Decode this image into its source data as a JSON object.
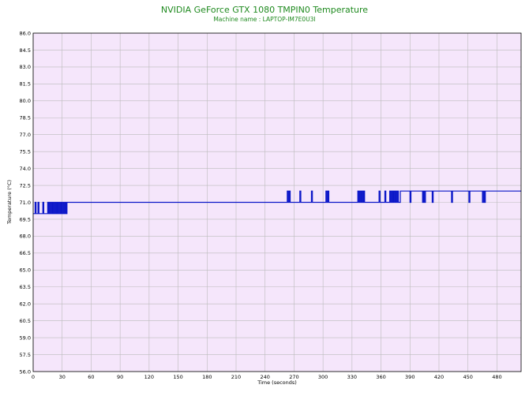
{
  "chart_data": {
    "type": "line",
    "title": "NVIDIA GeForce GTX 1080 TMPIN0 Temperature",
    "subtitle": "Machine name : LAPTOP-IM7E0U3I",
    "xlabel": "Time (seconds)",
    "ylabel": "Temperature (°C)",
    "xlim": [
      0,
      505
    ],
    "ylim": [
      56.0,
      86.0
    ],
    "x_ticks": [
      0,
      30,
      60,
      90,
      120,
      150,
      180,
      210,
      240,
      270,
      300,
      330,
      360,
      390,
      420,
      450,
      480
    ],
    "y_ticks": [
      56.0,
      57.5,
      59.0,
      60.5,
      62.0,
      63.5,
      65.0,
      66.5,
      68.0,
      69.5,
      71.0,
      72.5,
      74.0,
      75.5,
      77.0,
      78.5,
      80.0,
      81.5,
      83.0,
      84.5,
      86.0
    ],
    "grid": true,
    "series": [
      {
        "points": [
          [
            0,
            70.0
          ],
          [
            2,
            71.0
          ],
          [
            3,
            70.0
          ],
          [
            5,
            71.0
          ],
          [
            6,
            70.0
          ],
          [
            9,
            70.0
          ],
          [
            10,
            71.0
          ],
          [
            11,
            70.0
          ],
          [
            14,
            70.0
          ],
          [
            15,
            71.0
          ],
          [
            16,
            70.0
          ],
          [
            17,
            71.0
          ],
          [
            18,
            70.0
          ],
          [
            19,
            71.0
          ],
          [
            20,
            70.0
          ],
          [
            21,
            71.0
          ],
          [
            22,
            70.0
          ],
          [
            23,
            71.0
          ],
          [
            24,
            70.0
          ],
          [
            25,
            71.0
          ],
          [
            26,
            70.0
          ],
          [
            27,
            71.0
          ],
          [
            28,
            70.0
          ],
          [
            29,
            71.0
          ],
          [
            30,
            70.0
          ],
          [
            31,
            71.0
          ],
          [
            32,
            70.0
          ],
          [
            33,
            71.0
          ],
          [
            34,
            70.0
          ],
          [
            35,
            71.0
          ],
          [
            262,
            71.0
          ],
          [
            263,
            72.0
          ],
          [
            264,
            71.0
          ],
          [
            265,
            72.0
          ],
          [
            266,
            71.0
          ],
          [
            275,
            71.0
          ],
          [
            276,
            72.0
          ],
          [
            277,
            71.0
          ],
          [
            287,
            71.0
          ],
          [
            288,
            72.0
          ],
          [
            289,
            71.0
          ],
          [
            302,
            71.0
          ],
          [
            303,
            72.0
          ],
          [
            304,
            71.0
          ],
          [
            305,
            72.0
          ],
          [
            306,
            71.0
          ],
          [
            335,
            71.0
          ],
          [
            336,
            72.0
          ],
          [
            337,
            71.0
          ],
          [
            338,
            72.0
          ],
          [
            339,
            71.0
          ],
          [
            340,
            72.0
          ],
          [
            341,
            71.0
          ],
          [
            342,
            72.0
          ],
          [
            343,
            71.0
          ],
          [
            357,
            71.0
          ],
          [
            358,
            72.0
          ],
          [
            359,
            71.0
          ],
          [
            363,
            71.0
          ],
          [
            364,
            72.0
          ],
          [
            365,
            71.0
          ],
          [
            368,
            71.0
          ],
          [
            369,
            72.0
          ],
          [
            370,
            71.0
          ],
          [
            371,
            72.0
          ],
          [
            372,
            71.0
          ],
          [
            373,
            72.0
          ],
          [
            374,
            71.0
          ],
          [
            375,
            72.0
          ],
          [
            376,
            71.0
          ],
          [
            377,
            72.0
          ],
          [
            378,
            71.0
          ],
          [
            380,
            72.0
          ],
          [
            389,
            72.0
          ],
          [
            390,
            71.0
          ],
          [
            391,
            72.0
          ],
          [
            402,
            72.0
          ],
          [
            403,
            71.0
          ],
          [
            404,
            72.0
          ],
          [
            405,
            71.0
          ],
          [
            406,
            72.0
          ],
          [
            412,
            72.0
          ],
          [
            413,
            71.0
          ],
          [
            414,
            72.0
          ],
          [
            432,
            72.0
          ],
          [
            433,
            71.0
          ],
          [
            434,
            72.0
          ],
          [
            450,
            72.0
          ],
          [
            451,
            71.0
          ],
          [
            452,
            72.0
          ],
          [
            464,
            72.0
          ],
          [
            465,
            71.0
          ],
          [
            466,
            72.0
          ],
          [
            467,
            71.0
          ],
          [
            468,
            72.0
          ],
          [
            505,
            72.0
          ]
        ]
      }
    ]
  },
  "style": {
    "plot_background": "#f5e6fb",
    "grid_color": "#bbbbbb",
    "line_color": "#0a16c8",
    "title_color": "#1f8a1f"
  }
}
